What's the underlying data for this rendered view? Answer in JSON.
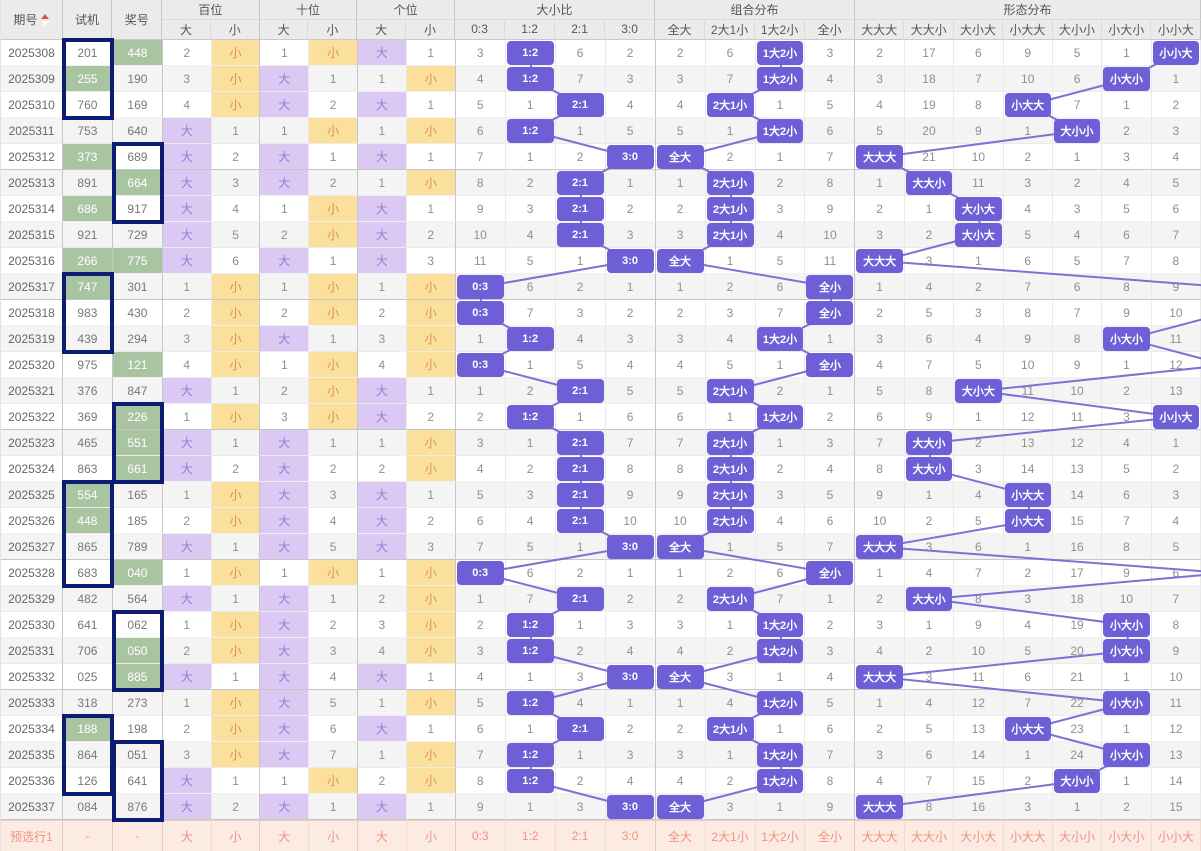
{
  "header": {
    "col_period": "期号",
    "col_test": "试机",
    "col_prize": "奖号",
    "sort_icon": "sort-asc-desc",
    "groups": [
      {
        "label": "百位",
        "subs": [
          "大",
          "小"
        ]
      },
      {
        "label": "十位",
        "subs": [
          "大",
          "小"
        ]
      },
      {
        "label": "个位",
        "subs": [
          "大",
          "小"
        ]
      },
      {
        "label": "大小比",
        "subs": [
          "0:3",
          "1:2",
          "2:1",
          "3:0"
        ]
      },
      {
        "label": "组合分布",
        "subs": [
          "全大",
          "2大1小",
          "1大2小",
          "全小"
        ]
      },
      {
        "label": "形态分布",
        "subs": [
          "大大大",
          "大大小",
          "大小大",
          "小大大",
          "大小小",
          "小大小",
          "小小大"
        ]
      }
    ]
  },
  "rows": [
    {
      "period": "2025308",
      "test": "201",
      "test_green": false,
      "prize": "448",
      "prize_green": true,
      "pos": [
        "2",
        "小",
        "1",
        "小",
        "大",
        "1"
      ],
      "ratio": [
        "3",
        "1:2",
        "6",
        "2"
      ],
      "combo": [
        "2",
        "6",
        "1大2小",
        "3"
      ],
      "shape": [
        "2",
        "17",
        "6",
        "9",
        "5",
        "1",
        "小小大"
      ]
    },
    {
      "period": "2025309",
      "test": "255",
      "test_green": true,
      "prize": "190",
      "prize_green": false,
      "pos": [
        "3",
        "小",
        "大",
        "1",
        "1",
        "小"
      ],
      "ratio": [
        "4",
        "1:2",
        "7",
        "3"
      ],
      "combo": [
        "3",
        "7",
        "1大2小",
        "4"
      ],
      "shape": [
        "3",
        "18",
        "7",
        "10",
        "6",
        "小大小",
        "1"
      ]
    },
    {
      "period": "2025310",
      "test": "760",
      "test_green": false,
      "prize": "169",
      "prize_green": false,
      "pos": [
        "4",
        "小",
        "大",
        "2",
        "大",
        "1"
      ],
      "ratio": [
        "5",
        "1",
        "2:1",
        "4"
      ],
      "combo": [
        "4",
        "2大1小",
        "1",
        "5"
      ],
      "shape": [
        "4",
        "19",
        "8",
        "小大大",
        "7",
        "1",
        "2"
      ]
    },
    {
      "period": "2025311",
      "test": "753",
      "test_green": false,
      "prize": "640",
      "prize_green": false,
      "pos": [
        "大",
        "1",
        "1",
        "小",
        "1",
        "小"
      ],
      "ratio": [
        "6",
        "1:2",
        "1",
        "5"
      ],
      "combo": [
        "5",
        "1",
        "1大2小",
        "6"
      ],
      "shape": [
        "5",
        "20",
        "9",
        "1",
        "大小小",
        "2",
        "3"
      ]
    },
    {
      "period": "2025312",
      "test": "373",
      "test_green": true,
      "prize": "689",
      "prize_green": false,
      "pos": [
        "大",
        "2",
        "大",
        "1",
        "大",
        "1"
      ],
      "ratio": [
        "7",
        "1",
        "2",
        "3:0"
      ],
      "combo": [
        "全大",
        "2",
        "1",
        "7"
      ],
      "shape": [
        "大大大",
        "21",
        "10",
        "2",
        "1",
        "3",
        "4"
      ]
    },
    {
      "period": "2025313",
      "test": "891",
      "test_green": false,
      "prize": "664",
      "prize_green": true,
      "pos": [
        "大",
        "3",
        "大",
        "2",
        "1",
        "小"
      ],
      "ratio": [
        "8",
        "2",
        "2:1",
        "1"
      ],
      "combo": [
        "1",
        "2大1小",
        "2",
        "8"
      ],
      "shape": [
        "1",
        "大大小",
        "11",
        "3",
        "2",
        "4",
        "5"
      ]
    },
    {
      "period": "2025314",
      "test": "686",
      "test_green": true,
      "prize": "917",
      "prize_green": false,
      "pos": [
        "大",
        "4",
        "1",
        "小",
        "大",
        "1"
      ],
      "ratio": [
        "9",
        "3",
        "2:1",
        "2"
      ],
      "combo": [
        "2",
        "2大1小",
        "3",
        "9"
      ],
      "shape": [
        "2",
        "1",
        "大小大",
        "4",
        "3",
        "5",
        "6"
      ]
    },
    {
      "period": "2025315",
      "test": "921",
      "test_green": false,
      "prize": "729",
      "prize_green": false,
      "pos": [
        "大",
        "5",
        "2",
        "小",
        "大",
        "2"
      ],
      "ratio": [
        "10",
        "4",
        "2:1",
        "3"
      ],
      "combo": [
        "3",
        "2大1小",
        "4",
        "10"
      ],
      "shape": [
        "3",
        "2",
        "大小大",
        "5",
        "4",
        "6",
        "7"
      ]
    },
    {
      "period": "2025316",
      "test": "266",
      "test_green": true,
      "prize": "775",
      "prize_green": true,
      "pos": [
        "大",
        "6",
        "大",
        "1",
        "大",
        "3"
      ],
      "ratio": [
        "11",
        "5",
        "1",
        "3:0"
      ],
      "combo": [
        "全大",
        "1",
        "5",
        "11"
      ],
      "shape": [
        "大大大",
        "3",
        "1",
        "6",
        "5",
        "7",
        "8"
      ]
    },
    {
      "period": "2025317",
      "test": "747",
      "test_green": true,
      "prize": "301",
      "prize_green": false,
      "pos": [
        "1",
        "小",
        "1",
        "小",
        "1",
        "小"
      ],
      "ratio": [
        "0:3",
        "6",
        "2",
        "1"
      ],
      "combo": [
        "1",
        "2",
        "6",
        "全小"
      ],
      "shape": [
        "1",
        "4",
        "2",
        "7",
        "6",
        "8",
        "9"
      ]
    },
    {
      "period": "2025318",
      "test": "983",
      "test_green": false,
      "prize": "430",
      "prize_green": false,
      "pos": [
        "2",
        "小",
        "2",
        "小",
        "2",
        "小"
      ],
      "ratio": [
        "0:3",
        "7",
        "3",
        "2"
      ],
      "combo": [
        "2",
        "3",
        "7",
        "全小"
      ],
      "shape": [
        "2",
        "5",
        "3",
        "8",
        "7",
        "9",
        "10"
      ]
    },
    {
      "period": "2025319",
      "test": "439",
      "test_green": false,
      "prize": "294",
      "prize_green": false,
      "pos": [
        "3",
        "小",
        "大",
        "1",
        "3",
        "小"
      ],
      "ratio": [
        "1",
        "1:2",
        "4",
        "3"
      ],
      "combo": [
        "3",
        "4",
        "1大2小",
        "1"
      ],
      "shape": [
        "3",
        "6",
        "4",
        "9",
        "8",
        "小大小",
        "11"
      ]
    },
    {
      "period": "2025320",
      "test": "975",
      "test_green": false,
      "prize": "121",
      "prize_green": true,
      "pos": [
        "4",
        "小",
        "1",
        "小",
        "4",
        "小"
      ],
      "ratio": [
        "0:3",
        "1",
        "5",
        "4"
      ],
      "combo": [
        "4",
        "5",
        "1",
        "全小"
      ],
      "shape": [
        "4",
        "7",
        "5",
        "10",
        "9",
        "1",
        "12"
      ]
    },
    {
      "period": "2025321",
      "test": "376",
      "test_green": false,
      "prize": "847",
      "prize_green": false,
      "pos": [
        "大",
        "1",
        "2",
        "小",
        "大",
        "1"
      ],
      "ratio": [
        "1",
        "2",
        "2:1",
        "5"
      ],
      "combo": [
        "5",
        "2大1小",
        "2",
        "1"
      ],
      "shape": [
        "5",
        "8",
        "大小大",
        "11",
        "10",
        "2",
        "13"
      ]
    },
    {
      "period": "2025322",
      "test": "369",
      "test_green": false,
      "prize": "226",
      "prize_green": true,
      "pos": [
        "1",
        "小",
        "3",
        "小",
        "大",
        "2"
      ],
      "ratio": [
        "2",
        "1:2",
        "1",
        "6"
      ],
      "combo": [
        "6",
        "1",
        "1大2小",
        "2"
      ],
      "shape": [
        "6",
        "9",
        "1",
        "12",
        "11",
        "3",
        "小小大"
      ]
    },
    {
      "period": "2025323",
      "test": "465",
      "test_green": false,
      "prize": "551",
      "prize_green": true,
      "pos": [
        "大",
        "1",
        "大",
        "1",
        "1",
        "小"
      ],
      "ratio": [
        "3",
        "1",
        "2:1",
        "7"
      ],
      "combo": [
        "7",
        "2大1小",
        "1",
        "3"
      ],
      "shape": [
        "7",
        "大大小",
        "2",
        "13",
        "12",
        "4",
        "1"
      ]
    },
    {
      "period": "2025324",
      "test": "863",
      "test_green": false,
      "prize": "661",
      "prize_green": true,
      "pos": [
        "大",
        "2",
        "大",
        "2",
        "2",
        "小"
      ],
      "ratio": [
        "4",
        "2",
        "2:1",
        "8"
      ],
      "combo": [
        "8",
        "2大1小",
        "2",
        "4"
      ],
      "shape": [
        "8",
        "大大小",
        "3",
        "14",
        "13",
        "5",
        "2"
      ]
    },
    {
      "period": "2025325",
      "test": "554",
      "test_green": true,
      "prize": "165",
      "prize_green": false,
      "pos": [
        "1",
        "小",
        "大",
        "3",
        "大",
        "1"
      ],
      "ratio": [
        "5",
        "3",
        "2:1",
        "9"
      ],
      "combo": [
        "9",
        "2大1小",
        "3",
        "5"
      ],
      "shape": [
        "9",
        "1",
        "4",
        "小大大",
        "14",
        "6",
        "3"
      ]
    },
    {
      "period": "2025326",
      "test": "448",
      "test_green": true,
      "prize": "185",
      "prize_green": false,
      "pos": [
        "2",
        "小",
        "大",
        "4",
        "大",
        "2"
      ],
      "ratio": [
        "6",
        "4",
        "2:1",
        "10"
      ],
      "combo": [
        "10",
        "2大1小",
        "4",
        "6"
      ],
      "shape": [
        "10",
        "2",
        "5",
        "小大大",
        "15",
        "7",
        "4"
      ]
    },
    {
      "period": "2025327",
      "test": "865",
      "test_green": false,
      "prize": "789",
      "prize_green": false,
      "pos": [
        "大",
        "1",
        "大",
        "5",
        "大",
        "3"
      ],
      "ratio": [
        "7",
        "5",
        "1",
        "3:0"
      ],
      "combo": [
        "全大",
        "1",
        "5",
        "7"
      ],
      "shape": [
        "大大大",
        "3",
        "6",
        "1",
        "16",
        "8",
        "5"
      ]
    },
    {
      "period": "2025328",
      "test": "683",
      "test_green": false,
      "prize": "040",
      "prize_green": true,
      "pos": [
        "1",
        "小",
        "1",
        "小",
        "1",
        "小"
      ],
      "ratio": [
        "0:3",
        "6",
        "2",
        "1"
      ],
      "combo": [
        "1",
        "2",
        "6",
        "全小"
      ],
      "shape": [
        "1",
        "4",
        "7",
        "2",
        "17",
        "9",
        "6"
      ]
    },
    {
      "period": "2025329",
      "test": "482",
      "test_green": false,
      "prize": "564",
      "prize_green": false,
      "pos": [
        "大",
        "1",
        "大",
        "1",
        "2",
        "小"
      ],
      "ratio": [
        "1",
        "7",
        "2:1",
        "2"
      ],
      "combo": [
        "2",
        "2大1小",
        "7",
        "1"
      ],
      "shape": [
        "2",
        "大大小",
        "8",
        "3",
        "18",
        "10",
        "7"
      ]
    },
    {
      "period": "2025330",
      "test": "641",
      "test_green": false,
      "prize": "062",
      "prize_green": false,
      "pos": [
        "1",
        "小",
        "大",
        "2",
        "3",
        "小"
      ],
      "ratio": [
        "2",
        "1:2",
        "1",
        "3"
      ],
      "combo": [
        "3",
        "1",
        "1大2小",
        "2"
      ],
      "shape": [
        "3",
        "1",
        "9",
        "4",
        "19",
        "小大小",
        "8"
      ]
    },
    {
      "period": "2025331",
      "test": "706",
      "test_green": false,
      "prize": "050",
      "prize_green": true,
      "pos": [
        "2",
        "小",
        "大",
        "3",
        "4",
        "小"
      ],
      "ratio": [
        "3",
        "1:2",
        "2",
        "4"
      ],
      "combo": [
        "4",
        "2",
        "1大2小",
        "3"
      ],
      "shape": [
        "4",
        "2",
        "10",
        "5",
        "20",
        "小大小",
        "9"
      ]
    },
    {
      "period": "2025332",
      "test": "025",
      "test_green": false,
      "prize": "885",
      "prize_green": true,
      "pos": [
        "大",
        "1",
        "大",
        "4",
        "大",
        "1"
      ],
      "ratio": [
        "4",
        "1",
        "3",
        "3:0"
      ],
      "combo": [
        "全大",
        "3",
        "1",
        "4"
      ],
      "shape": [
        "大大大",
        "3",
        "11",
        "6",
        "21",
        "1",
        "10"
      ]
    },
    {
      "period": "2025333",
      "test": "318",
      "test_green": false,
      "prize": "273",
      "prize_green": false,
      "pos": [
        "1",
        "小",
        "大",
        "5",
        "1",
        "小"
      ],
      "ratio": [
        "5",
        "1:2",
        "4",
        "1"
      ],
      "combo": [
        "1",
        "4",
        "1大2小",
        "5"
      ],
      "shape": [
        "1",
        "4",
        "12",
        "7",
        "22",
        "小大小",
        "11"
      ]
    },
    {
      "period": "2025334",
      "test": "188",
      "test_green": true,
      "prize": "198",
      "prize_green": false,
      "pos": [
        "2",
        "小",
        "大",
        "6",
        "大",
        "1"
      ],
      "ratio": [
        "6",
        "1",
        "2:1",
        "2"
      ],
      "combo": [
        "2",
        "2大1小",
        "1",
        "6"
      ],
      "shape": [
        "2",
        "5",
        "13",
        "小大大",
        "23",
        "1",
        "12"
      ]
    },
    {
      "period": "2025335",
      "test": "864",
      "test_green": false,
      "prize": "051",
      "prize_green": false,
      "pos": [
        "3",
        "小",
        "大",
        "7",
        "1",
        "小"
      ],
      "ratio": [
        "7",
        "1:2",
        "1",
        "3"
      ],
      "combo": [
        "3",
        "1",
        "1大2小",
        "7"
      ],
      "shape": [
        "3",
        "6",
        "14",
        "1",
        "24",
        "小大小",
        "13"
      ]
    },
    {
      "period": "2025336",
      "test": "126",
      "test_green": false,
      "prize": "641",
      "prize_green": false,
      "pos": [
        "大",
        "1",
        "1",
        "小",
        "2",
        "小"
      ],
      "ratio": [
        "8",
        "1:2",
        "2",
        "4"
      ],
      "combo": [
        "4",
        "2",
        "1大2小",
        "8"
      ],
      "shape": [
        "4",
        "7",
        "15",
        "2",
        "大小小",
        "1",
        "14"
      ]
    },
    {
      "period": "2025337",
      "test": "084",
      "test_green": false,
      "prize": "876",
      "prize_green": false,
      "pos": [
        "大",
        "2",
        "大",
        "1",
        "大",
        "1"
      ],
      "ratio": [
        "9",
        "1",
        "3",
        "3:0"
      ],
      "combo": [
        "全大",
        "3",
        "1",
        "9"
      ],
      "shape": [
        "大大大",
        "8",
        "16",
        "3",
        "1",
        "2",
        "15"
      ]
    }
  ],
  "boxes": [
    {
      "col": "test",
      "from": 0,
      "to": 2
    },
    {
      "col": "test",
      "from": 9,
      "to": 11
    },
    {
      "col": "test",
      "from": 17,
      "to": 20
    },
    {
      "col": "test",
      "from": 26,
      "to": 28
    },
    {
      "col": "prize",
      "from": 4,
      "to": 6
    },
    {
      "col": "prize",
      "from": 14,
      "to": 16
    },
    {
      "col": "prize",
      "from": 22,
      "to": 24
    },
    {
      "col": "prize",
      "from": 27,
      "to": 29
    }
  ],
  "footer": {
    "label": "预选行1",
    "test": "-",
    "prize": "-",
    "pos": [
      "大",
      "小",
      "大",
      "小",
      "大",
      "小"
    ],
    "ratio": [
      "0:3",
      "1:2",
      "2:1",
      "3:0"
    ],
    "combo": [
      "全大",
      "2大1小",
      "1大2小",
      "全小"
    ],
    "shape": [
      "大大大",
      "大大小",
      "大小大",
      "小大大",
      "大小小",
      "小大小",
      "小小大"
    ]
  },
  "colors": {
    "hit": "#6e5fd6",
    "big_bg": "#dcc9f3",
    "big_text": "#9a7bd0",
    "small_bg": "#fbdf9d",
    "small_text": "#df8f4f",
    "green_bg": "#a9c4a0",
    "box_border": "#0c1c70",
    "line": "#7b72d3",
    "footer_bg": "#fcebe3",
    "footer_text": "#ee9383",
    "header_bg": "#ebebeb",
    "sort_up": "#d9534f"
  }
}
